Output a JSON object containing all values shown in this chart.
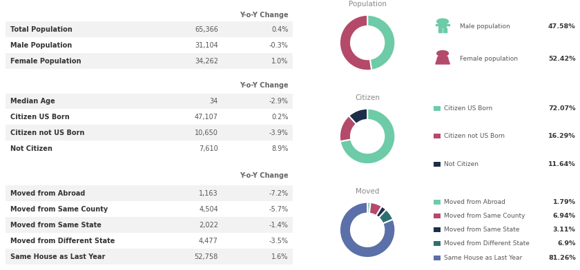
{
  "bg_color": "#ffffff",
  "table1": {
    "header": "Y-o-Y Change",
    "rows": [
      [
        "Total Population",
        "65,366",
        "0.4%"
      ],
      [
        "Male Population",
        "31,104",
        "-0.3%"
      ],
      [
        "Female Population",
        "34,262",
        "1.0%"
      ]
    ]
  },
  "table2": {
    "header": "Y-o-Y Change",
    "rows": [
      [
        "Median Age",
        "34",
        "-2.9%"
      ],
      [
        "Citizen US Born",
        "47,107",
        "0.2%"
      ],
      [
        "Citizen not US Born",
        "10,650",
        "-3.9%"
      ],
      [
        "Not Citizen",
        "7,610",
        "8.9%"
      ]
    ]
  },
  "table3": {
    "header": "Y-o-Y Change",
    "rows": [
      [
        "Moved from Abroad",
        "1,163",
        "-7.2%"
      ],
      [
        "Moved from Same County",
        "4,504",
        "-5.7%"
      ],
      [
        "Moved from Same State",
        "2,022",
        "-1.4%"
      ],
      [
        "Moved from Different State",
        "4,477",
        "-3.5%"
      ],
      [
        "Same House as Last Year",
        "52,758",
        "1.6%"
      ]
    ]
  },
  "donut1": {
    "title": "Population",
    "values": [
      47.58,
      52.42
    ],
    "colors": [
      "#6dcba8",
      "#b5496a"
    ],
    "start_angle": 90,
    "counterclock": false
  },
  "donut1_legend": [
    {
      "label": "Male population",
      "pct": "47.58%",
      "color": "#6dcba8",
      "icon": "male"
    },
    {
      "label": "Female population",
      "pct": "52.42%",
      "color": "#b5496a",
      "icon": "female"
    }
  ],
  "donut2": {
    "title": "Citizen",
    "values": [
      72.07,
      16.29,
      11.64
    ],
    "colors": [
      "#6dcba8",
      "#b5496a",
      "#1e2d4a"
    ],
    "start_angle": 90,
    "counterclock": false
  },
  "donut2_legend": [
    {
      "label": "Citizen US Born",
      "pct": "72.07%",
      "color": "#6dcba8"
    },
    {
      "label": "Citizen not US Born",
      "pct": "16.29%",
      "color": "#b5496a"
    },
    {
      "label": "Not Citizen",
      "pct": "11.64%",
      "color": "#1e2d4a"
    }
  ],
  "donut3": {
    "title": "Moved",
    "values": [
      1.79,
      6.94,
      3.11,
      6.9,
      81.26
    ],
    "colors": [
      "#6dcba8",
      "#b5496a",
      "#1e2d4a",
      "#2e7070",
      "#5b6fa8"
    ],
    "start_angle": 90,
    "counterclock": false
  },
  "donut3_legend": [
    {
      "label": "Moved from Abroad",
      "pct": "1.79%",
      "color": "#6dcba8"
    },
    {
      "label": "Moved from Same County",
      "pct": "6.94%",
      "color": "#b5496a"
    },
    {
      "label": "Moved from Same State",
      "pct": "3.11%",
      "color": "#1e2d4a"
    },
    {
      "label": "Moved from Different State",
      "pct": "6.9%",
      "color": "#2e7070"
    },
    {
      "label": "Same House as Last Year",
      "pct": "81.26%",
      "color": "#5b6fa8"
    }
  ],
  "label_color": "#555555",
  "header_color": "#666666",
  "value_color": "#555555",
  "bold_color": "#333333",
  "row_bg_odd": "#f2f2f2",
  "row_bg_even": "#ffffff",
  "title_color": "#888888"
}
